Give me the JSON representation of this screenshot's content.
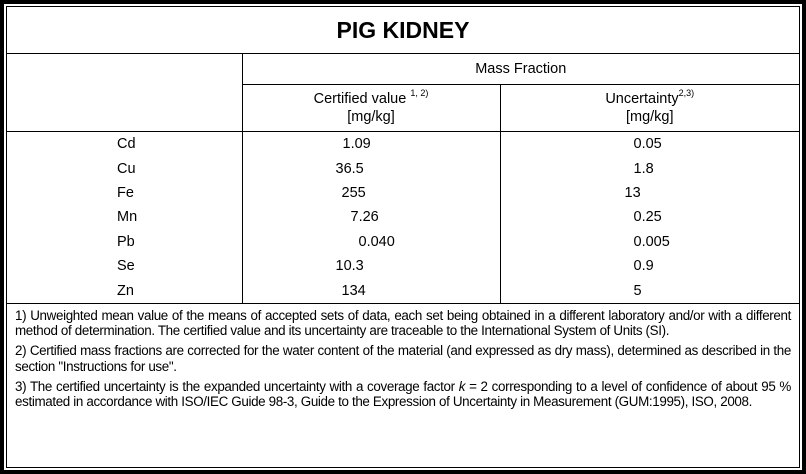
{
  "title": "PIG KIDNEY",
  "group_header": "Mass Fraction",
  "columns": [
    {
      "label": "Certified value",
      "sup": "1, 2)",
      "unit": "[mg/kg]"
    },
    {
      "label": "Uncertainty",
      "sup": "2,3)",
      "unit": "[mg/kg]"
    }
  ],
  "rows": [
    {
      "element": "Cd",
      "certified": "1.09",
      "uncertainty": "0.05"
    },
    {
      "element": "Cu",
      "certified": "36.5",
      "uncertainty": "1.8"
    },
    {
      "element": "Fe",
      "certified": "255",
      "uncertainty": "13"
    },
    {
      "element": "Mn",
      "certified": "7.26",
      "uncertainty": "0.25"
    },
    {
      "element": "Pb",
      "certified": "0.040",
      "uncertainty": "0.005"
    },
    {
      "element": "Se",
      "certified": "10.3",
      "uncertainty": "0.9"
    },
    {
      "element": "Zn",
      "certified": "134",
      "uncertainty": "5"
    }
  ],
  "footnotes": {
    "n1": "1) Unweighted mean value of the means of accepted sets of data, each set being obtained in a different laboratory and/or with a different method of determination. The certified value and its uncertainty are traceable to the International System of Units (SI).",
    "n2": "2) Certified mass fractions are corrected for the water content of the material (and expressed as dry mass), determined as described in the section \"Instructions for use\".",
    "n3a": "3) The certified uncertainty is the expanded uncertainty with a coverage factor ",
    "n3k": "k",
    "n3b": " = 2 corresponding to a level of confidence of about 95 % estimated in accordance with ISO/IEC Guide 98-3, Guide to the Expression of Uncertainty in Measurement (GUM:1995), ISO, 2008."
  }
}
